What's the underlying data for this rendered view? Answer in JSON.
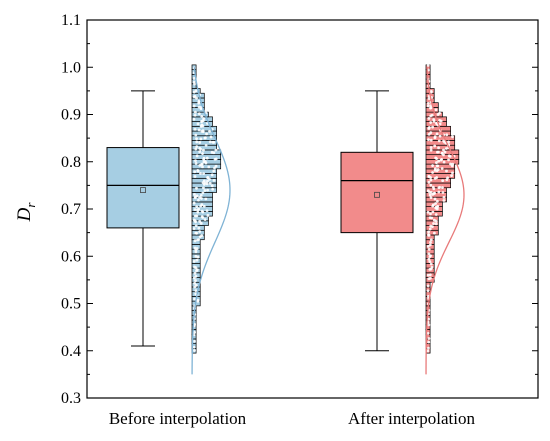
{
  "chart_data": {
    "type": "box",
    "title": "",
    "xlabel": "",
    "ylabel": "D",
    "ylabel_subscript": "r",
    "ylim": [
      0.3,
      1.1
    ],
    "yticks": [
      0.3,
      0.4,
      0.5,
      0.6,
      0.7,
      0.8,
      0.9,
      1.0,
      1.1
    ],
    "ytick_labels": [
      "0.3",
      "0.4",
      "0.5",
      "0.6",
      "0.7",
      "0.8",
      "0.9",
      "1.0",
      "1.1"
    ],
    "categories": [
      "Before interpolation",
      "After interpolation"
    ],
    "grid": false,
    "legend": "none",
    "series": [
      {
        "category": "Before interpolation",
        "color": "#a6cee3",
        "line_color": "#7fb3d5",
        "box": {
          "whisker_low": 0.41,
          "q1": 0.66,
          "median": 0.75,
          "q3": 0.83,
          "whisker_high": 0.95,
          "mean": 0.74
        },
        "histogram": {
          "bin_width": 0.01,
          "bins": [
            [
              0.4,
              1
            ],
            [
              0.41,
              1
            ],
            [
              0.42,
              1
            ],
            [
              0.43,
              1
            ],
            [
              0.44,
              1
            ],
            [
              0.45,
              1
            ],
            [
              0.46,
              1
            ],
            [
              0.47,
              1
            ],
            [
              0.48,
              1
            ],
            [
              0.49,
              1
            ],
            [
              0.5,
              2
            ],
            [
              0.51,
              2
            ],
            [
              0.52,
              2
            ],
            [
              0.53,
              2
            ],
            [
              0.54,
              2
            ],
            [
              0.55,
              2
            ],
            [
              0.56,
              2
            ],
            [
              0.57,
              2
            ],
            [
              0.58,
              2
            ],
            [
              0.59,
              2
            ],
            [
              0.6,
              2
            ],
            [
              0.61,
              2
            ],
            [
              0.62,
              2
            ],
            [
              0.63,
              2
            ],
            [
              0.64,
              3
            ],
            [
              0.65,
              3
            ],
            [
              0.66,
              3
            ],
            [
              0.67,
              4
            ],
            [
              0.68,
              4
            ],
            [
              0.69,
              5
            ],
            [
              0.7,
              5
            ],
            [
              0.71,
              5
            ],
            [
              0.72,
              5
            ],
            [
              0.73,
              5
            ],
            [
              0.74,
              6
            ],
            [
              0.75,
              6
            ],
            [
              0.76,
              6
            ],
            [
              0.77,
              6
            ],
            [
              0.78,
              6
            ],
            [
              0.79,
              7
            ],
            [
              0.8,
              7
            ],
            [
              0.81,
              7
            ],
            [
              0.82,
              7
            ],
            [
              0.83,
              6
            ],
            [
              0.84,
              6
            ],
            [
              0.85,
              6
            ],
            [
              0.86,
              6
            ],
            [
              0.87,
              6
            ],
            [
              0.88,
              5
            ],
            [
              0.89,
              5
            ],
            [
              0.9,
              4
            ],
            [
              0.91,
              3
            ],
            [
              0.92,
              3
            ],
            [
              0.93,
              3
            ],
            [
              0.94,
              3
            ],
            [
              0.95,
              2
            ],
            [
              0.96,
              1
            ],
            [
              0.97,
              1
            ],
            [
              0.98,
              1
            ],
            [
              0.99,
              1
            ],
            [
              1.0,
              1
            ]
          ]
        },
        "density": {
          "mean": 0.74,
          "sd": 0.11,
          "range": [
            0.35,
            1.0
          ]
        }
      },
      {
        "category": "After interpolation",
        "color": "#f28b8b",
        "line_color": "#e87a7a",
        "box": {
          "whisker_low": 0.4,
          "q1": 0.65,
          "median": 0.76,
          "q3": 0.82,
          "whisker_high": 0.95,
          "mean": 0.73
        },
        "histogram": {
          "bin_width": 0.01,
          "bins": [
            [
              0.4,
              1
            ],
            [
              0.41,
              1
            ],
            [
              0.42,
              1
            ],
            [
              0.43,
              1
            ],
            [
              0.44,
              1
            ],
            [
              0.45,
              1
            ],
            [
              0.46,
              1
            ],
            [
              0.47,
              1
            ],
            [
              0.48,
              1
            ],
            [
              0.49,
              1
            ],
            [
              0.5,
              1
            ],
            [
              0.51,
              1
            ],
            [
              0.52,
              1
            ],
            [
              0.53,
              1
            ],
            [
              0.54,
              1
            ],
            [
              0.55,
              2
            ],
            [
              0.56,
              2
            ],
            [
              0.57,
              2
            ],
            [
              0.58,
              2
            ],
            [
              0.59,
              2
            ],
            [
              0.6,
              2
            ],
            [
              0.61,
              2
            ],
            [
              0.62,
              2
            ],
            [
              0.63,
              2
            ],
            [
              0.64,
              2
            ],
            [
              0.65,
              3
            ],
            [
              0.66,
              3
            ],
            [
              0.67,
              3
            ],
            [
              0.68,
              3
            ],
            [
              0.69,
              4
            ],
            [
              0.7,
              4
            ],
            [
              0.71,
              4
            ],
            [
              0.72,
              5
            ],
            [
              0.73,
              5
            ],
            [
              0.74,
              5
            ],
            [
              0.75,
              6
            ],
            [
              0.76,
              6
            ],
            [
              0.77,
              7
            ],
            [
              0.78,
              7
            ],
            [
              0.79,
              7
            ],
            [
              0.8,
              8
            ],
            [
              0.81,
              8
            ],
            [
              0.82,
              8
            ],
            [
              0.83,
              7
            ],
            [
              0.84,
              7
            ],
            [
              0.85,
              7
            ],
            [
              0.86,
              6
            ],
            [
              0.87,
              6
            ],
            [
              0.88,
              5
            ],
            [
              0.89,
              5
            ],
            [
              0.9,
              4
            ],
            [
              0.91,
              3
            ],
            [
              0.92,
              3
            ],
            [
              0.93,
              2
            ],
            [
              0.94,
              2
            ],
            [
              0.95,
              2
            ],
            [
              0.96,
              1
            ],
            [
              0.97,
              1
            ],
            [
              0.98,
              1
            ],
            [
              0.99,
              1
            ],
            [
              1.0,
              1
            ]
          ]
        },
        "density": {
          "mean": 0.73,
          "sd": 0.1,
          "range": [
            0.35,
            1.0
          ]
        }
      }
    ]
  }
}
